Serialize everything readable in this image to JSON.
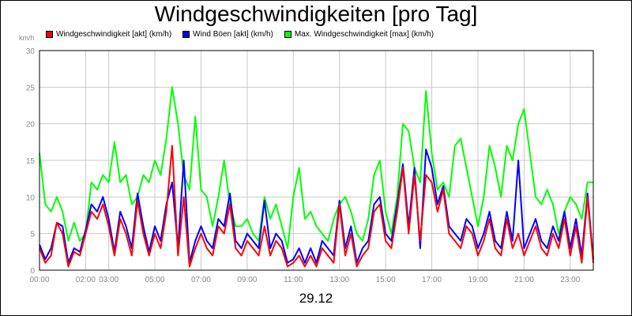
{
  "title": "Windgeschwindigkeiten [pro Tag]",
  "date_label": "29.12",
  "chart_data": {
    "type": "line",
    "ylabel": "km/h",
    "ylim": [
      0,
      30
    ],
    "yticks": [
      0,
      5,
      10,
      15,
      20,
      25,
      30
    ],
    "xlim": [
      0,
      24
    ],
    "xticks": [
      {
        "h": 0,
        "label": "00:00"
      },
      {
        "h": 2,
        "label": "02:00"
      },
      {
        "h": 3,
        "label": "03:00"
      },
      {
        "h": 5,
        "label": "05:00"
      },
      {
        "h": 7,
        "label": "07:00"
      },
      {
        "h": 9,
        "label": "09:00"
      },
      {
        "h": 11,
        "label": "11:00"
      },
      {
        "h": 13,
        "label": "13:00"
      },
      {
        "h": 15,
        "label": "15:00"
      },
      {
        "h": 17,
        "label": "17:00"
      },
      {
        "h": 19,
        "label": "19:00"
      },
      {
        "h": 21,
        "label": "21:00"
      },
      {
        "h": 23,
        "label": "23:00"
      }
    ],
    "grid": true,
    "legend_position": "top",
    "series": [
      {
        "name": "Windgeschwindigkeit [akt] (km/h)",
        "color": "#ff0000",
        "points": [
          [
            0,
            3
          ],
          [
            0.25,
            1
          ],
          [
            0.5,
            2
          ],
          [
            0.75,
            6.5
          ],
          [
            1,
            5
          ],
          [
            1.25,
            0.5
          ],
          [
            1.5,
            2.5
          ],
          [
            1.75,
            2
          ],
          [
            2,
            5
          ],
          [
            2.25,
            8
          ],
          [
            2.5,
            7
          ],
          [
            2.75,
            9
          ],
          [
            3,
            6
          ],
          [
            3.25,
            2
          ],
          [
            3.5,
            7
          ],
          [
            3.75,
            5
          ],
          [
            4,
            2
          ],
          [
            4.25,
            9.5
          ],
          [
            4.5,
            5
          ],
          [
            4.75,
            2
          ],
          [
            5,
            5
          ],
          [
            5.25,
            3
          ],
          [
            5.5,
            8
          ],
          [
            5.75,
            17
          ],
          [
            6,
            2
          ],
          [
            6.25,
            10
          ],
          [
            6.5,
            0.5
          ],
          [
            6.75,
            3
          ],
          [
            7,
            5
          ],
          [
            7.25,
            3
          ],
          [
            7.5,
            2
          ],
          [
            7.75,
            6
          ],
          [
            8,
            5
          ],
          [
            8.25,
            9
          ],
          [
            8.5,
            3
          ],
          [
            8.75,
            2
          ],
          [
            9,
            4
          ],
          [
            9.25,
            3
          ],
          [
            9.5,
            2
          ],
          [
            9.75,
            6
          ],
          [
            10,
            2
          ],
          [
            10.25,
            4
          ],
          [
            10.5,
            3
          ],
          [
            10.75,
            0.5
          ],
          [
            11,
            1
          ],
          [
            11.25,
            2
          ],
          [
            11.5,
            0.5
          ],
          [
            11.75,
            2
          ],
          [
            12,
            0.5
          ],
          [
            12.25,
            3
          ],
          [
            12.5,
            2
          ],
          [
            12.75,
            1
          ],
          [
            13,
            9
          ],
          [
            13.25,
            2
          ],
          [
            13.5,
            5
          ],
          [
            13.75,
            0.5
          ],
          [
            14,
            2
          ],
          [
            14.25,
            3
          ],
          [
            14.5,
            8
          ],
          [
            14.75,
            9
          ],
          [
            15,
            4
          ],
          [
            15.25,
            3
          ],
          [
            15.5,
            8
          ],
          [
            15.75,
            14
          ],
          [
            16,
            5
          ],
          [
            16.25,
            13
          ],
          [
            16.5,
            4
          ],
          [
            16.75,
            13
          ],
          [
            17,
            12
          ],
          [
            17.25,
            8
          ],
          [
            17.5,
            11
          ],
          [
            17.75,
            5
          ],
          [
            18,
            4
          ],
          [
            18.25,
            3
          ],
          [
            18.5,
            6
          ],
          [
            18.75,
            5
          ],
          [
            19,
            2
          ],
          [
            19.25,
            4
          ],
          [
            19.5,
            7
          ],
          [
            19.75,
            3
          ],
          [
            20,
            2
          ],
          [
            20.25,
            7
          ],
          [
            20.5,
            3
          ],
          [
            20.75,
            5
          ],
          [
            21,
            2
          ],
          [
            21.25,
            4
          ],
          [
            21.5,
            6
          ],
          [
            21.75,
            3
          ],
          [
            22,
            2
          ],
          [
            22.25,
            5
          ],
          [
            22.5,
            3
          ],
          [
            22.75,
            7
          ],
          [
            23,
            2
          ],
          [
            23.25,
            6
          ],
          [
            23.5,
            1
          ],
          [
            23.75,
            10
          ],
          [
            24,
            1
          ]
        ]
      },
      {
        "name": "Wind Böen [akt] (km/h)",
        "color": "#0000ff",
        "points": [
          [
            0,
            3.5
          ],
          [
            0.25,
            1.5
          ],
          [
            0.5,
            3
          ],
          [
            0.75,
            6.5
          ],
          [
            1,
            6
          ],
          [
            1.25,
            1
          ],
          [
            1.5,
            3
          ],
          [
            1.75,
            2.5
          ],
          [
            2,
            5.5
          ],
          [
            2.25,
            9
          ],
          [
            2.5,
            8
          ],
          [
            2.75,
            10
          ],
          [
            3,
            7
          ],
          [
            3.25,
            2.5
          ],
          [
            3.5,
            8
          ],
          [
            3.75,
            6
          ],
          [
            4,
            3
          ],
          [
            4.25,
            10.5
          ],
          [
            4.5,
            6
          ],
          [
            4.75,
            2.5
          ],
          [
            5,
            6
          ],
          [
            5.25,
            4
          ],
          [
            5.5,
            9
          ],
          [
            5.75,
            12
          ],
          [
            6,
            3
          ],
          [
            6.25,
            15
          ],
          [
            6.5,
            1
          ],
          [
            6.75,
            4
          ],
          [
            7,
            6
          ],
          [
            7.25,
            4
          ],
          [
            7.5,
            3
          ],
          [
            7.75,
            7
          ],
          [
            8,
            6
          ],
          [
            8.25,
            10.5
          ],
          [
            8.5,
            4
          ],
          [
            8.75,
            3
          ],
          [
            9,
            5
          ],
          [
            9.25,
            4
          ],
          [
            9.5,
            3
          ],
          [
            9.75,
            9.5
          ],
          [
            10,
            3
          ],
          [
            10.25,
            5
          ],
          [
            10.5,
            4
          ],
          [
            10.75,
            1
          ],
          [
            11,
            1.5
          ],
          [
            11.25,
            3
          ],
          [
            11.5,
            1
          ],
          [
            11.75,
            3
          ],
          [
            12,
            1
          ],
          [
            12.25,
            4
          ],
          [
            12.5,
            3
          ],
          [
            12.75,
            2
          ],
          [
            13,
            9.5
          ],
          [
            13.25,
            3
          ],
          [
            13.5,
            6
          ],
          [
            13.75,
            1
          ],
          [
            14,
            3
          ],
          [
            14.25,
            4
          ],
          [
            14.5,
            9
          ],
          [
            14.75,
            10
          ],
          [
            15,
            5
          ],
          [
            15.25,
            4
          ],
          [
            15.5,
            9
          ],
          [
            15.75,
            14.5
          ],
          [
            16,
            6
          ],
          [
            16.25,
            14
          ],
          [
            16.5,
            3
          ],
          [
            16.75,
            16.5
          ],
          [
            17,
            14
          ],
          [
            17.25,
            9
          ],
          [
            17.5,
            11.5
          ],
          [
            17.75,
            6
          ],
          [
            18,
            5
          ],
          [
            18.25,
            4
          ],
          [
            18.5,
            7
          ],
          [
            18.75,
            6
          ],
          [
            19,
            3
          ],
          [
            19.25,
            5
          ],
          [
            19.5,
            8
          ],
          [
            19.75,
            4
          ],
          [
            20,
            3
          ],
          [
            20.25,
            8
          ],
          [
            20.5,
            4
          ],
          [
            20.75,
            15
          ],
          [
            21,
            3
          ],
          [
            21.25,
            5
          ],
          [
            21.5,
            7
          ],
          [
            21.75,
            4
          ],
          [
            22,
            3
          ],
          [
            22.25,
            6
          ],
          [
            22.5,
            4
          ],
          [
            22.75,
            8
          ],
          [
            23,
            3
          ],
          [
            23.25,
            7
          ],
          [
            23.5,
            2
          ],
          [
            23.75,
            10.5
          ],
          [
            24,
            1.5
          ]
        ]
      },
      {
        "name": "Max. Windgeschwindigkeit [max] (km/h)",
        "color": "#00ff00",
        "points": [
          [
            0,
            16
          ],
          [
            0.25,
            9
          ],
          [
            0.5,
            8
          ],
          [
            0.75,
            10
          ],
          [
            1,
            8
          ],
          [
            1.25,
            4
          ],
          [
            1.5,
            6.5
          ],
          [
            1.75,
            4
          ],
          [
            2,
            5
          ],
          [
            2.25,
            12
          ],
          [
            2.5,
            11
          ],
          [
            2.75,
            13
          ],
          [
            3,
            12
          ],
          [
            3.25,
            17.5
          ],
          [
            3.5,
            12
          ],
          [
            3.75,
            13
          ],
          [
            4,
            9
          ],
          [
            4.25,
            10
          ],
          [
            4.5,
            13
          ],
          [
            4.75,
            12
          ],
          [
            5,
            15
          ],
          [
            5.25,
            13
          ],
          [
            5.5,
            18
          ],
          [
            5.75,
            25
          ],
          [
            6,
            20
          ],
          [
            6.25,
            13
          ],
          [
            6.5,
            11
          ],
          [
            6.75,
            21
          ],
          [
            7,
            11
          ],
          [
            7.25,
            10
          ],
          [
            7.5,
            6
          ],
          [
            7.75,
            10
          ],
          [
            8,
            15
          ],
          [
            8.25,
            9
          ],
          [
            8.5,
            6
          ],
          [
            8.75,
            6
          ],
          [
            9,
            7
          ],
          [
            9.25,
            5
          ],
          [
            9.5,
            4
          ],
          [
            9.75,
            10
          ],
          [
            10,
            7
          ],
          [
            10.25,
            9
          ],
          [
            10.5,
            6
          ],
          [
            10.75,
            3
          ],
          [
            11,
            10
          ],
          [
            11.25,
            14
          ],
          [
            11.5,
            7
          ],
          [
            11.75,
            8
          ],
          [
            12,
            6
          ],
          [
            12.25,
            5
          ],
          [
            12.5,
            4
          ],
          [
            12.75,
            7
          ],
          [
            13,
            9
          ],
          [
            13.25,
            10
          ],
          [
            13.5,
            8
          ],
          [
            13.75,
            5
          ],
          [
            14,
            4
          ],
          [
            14.25,
            7
          ],
          [
            14.5,
            13
          ],
          [
            14.75,
            15
          ],
          [
            15,
            8
          ],
          [
            15.25,
            5
          ],
          [
            15.5,
            10
          ],
          [
            15.75,
            20
          ],
          [
            16,
            19
          ],
          [
            16.25,
            14
          ],
          [
            16.5,
            12
          ],
          [
            16.75,
            24.5
          ],
          [
            17,
            16
          ],
          [
            17.25,
            11
          ],
          [
            17.5,
            12
          ],
          [
            17.75,
            10
          ],
          [
            18,
            17
          ],
          [
            18.25,
            18
          ],
          [
            18.5,
            14
          ],
          [
            18.75,
            10
          ],
          [
            19,
            6
          ],
          [
            19.25,
            10
          ],
          [
            19.5,
            17
          ],
          [
            19.75,
            14
          ],
          [
            20,
            10
          ],
          [
            20.25,
            17
          ],
          [
            20.5,
            15
          ],
          [
            20.75,
            20
          ],
          [
            21,
            22
          ],
          [
            21.25,
            16
          ],
          [
            21.5,
            10
          ],
          [
            21.75,
            9
          ],
          [
            22,
            11
          ],
          [
            22.25,
            9
          ],
          [
            22.5,
            5
          ],
          [
            22.75,
            8
          ],
          [
            23,
            10
          ],
          [
            23.25,
            9
          ],
          [
            23.5,
            7
          ],
          [
            23.75,
            12
          ],
          [
            24,
            12
          ]
        ]
      }
    ]
  }
}
